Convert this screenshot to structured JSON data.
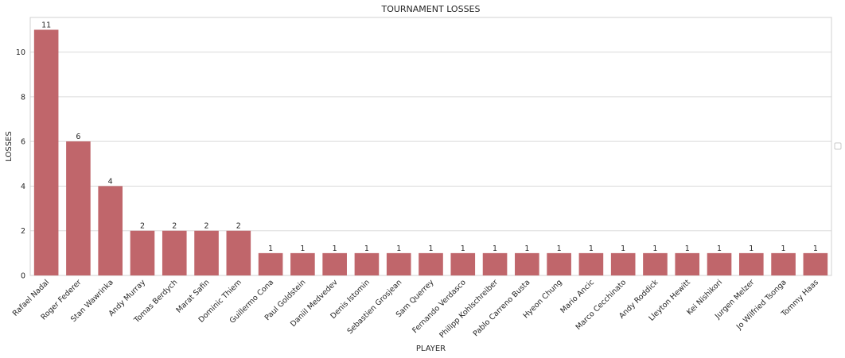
{
  "chart_data": {
    "type": "bar",
    "title": "TOURNAMENT LOSSES",
    "xlabel": "PLAYER",
    "ylabel": "LOSSES",
    "ylim": [
      0,
      11.55
    ],
    "yticks": [
      0,
      2,
      4,
      6,
      8,
      10
    ],
    "grid": true,
    "bar_color": "#c0666b",
    "legend": "empty box at right",
    "categories": [
      "Rafael Nadal",
      "Roger Federer",
      "Stan Wawrinka",
      "Andy Murray",
      "Tomas Berdych",
      "Marat Safin",
      "Dominic Thiem",
      "Guillermo Cona",
      "Paul Goldstein",
      "Daniil Medvedev",
      "Denis Istomin",
      "Sebastien Grosjean",
      "Sam Querrey",
      "Fernando Verdasco",
      "Philipp Kohlschreiber",
      "Pablo Carreno Busta",
      "Hyeon Chung",
      "Mario Ancic",
      "Marco Cecchinato",
      "Andy Roddick",
      "Lleyton Hewitt",
      "Kei Nishikori",
      "Jurgen Melzer",
      "Jo Wilfried Tsonga",
      "Tommy Haas"
    ],
    "values": [
      11,
      6,
      4,
      2,
      2,
      2,
      2,
      1,
      1,
      1,
      1,
      1,
      1,
      1,
      1,
      1,
      1,
      1,
      1,
      1,
      1,
      1,
      1,
      1,
      1
    ]
  }
}
